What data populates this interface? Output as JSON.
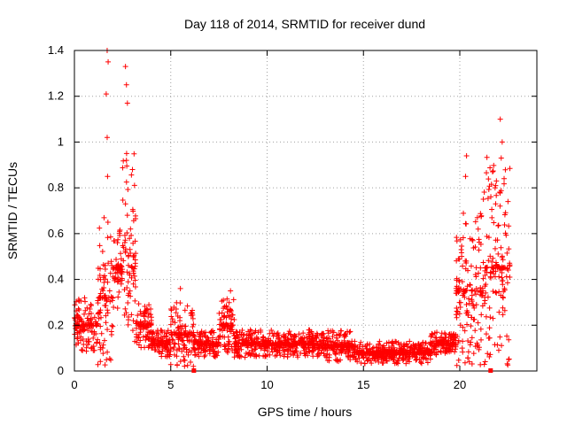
{
  "chart_data": {
    "type": "scatter",
    "title": "Day 118 of 2014, SRMTID for receiver dund",
    "xlabel": "GPS time / hours",
    "ylabel": "SRMTID / TECUs",
    "xlim": [
      0,
      24
    ],
    "ylim": [
      0,
      1.4
    ],
    "xticks": [
      "0",
      "5",
      "10",
      "15",
      "20"
    ],
    "yticks": [
      "0",
      "0.2",
      "0.4",
      "0.6",
      "0.8",
      "1",
      "1.2",
      "1.4"
    ],
    "grid": true,
    "marker": "+",
    "series_color": "#ff0000",
    "segments": [
      {
        "x": [
          0.0,
          1.2
        ],
        "base": 0.2,
        "spread": 0.12
      },
      {
        "x": [
          1.2,
          2.0
        ],
        "base": 0.32,
        "spread": 0.35
      },
      {
        "x": [
          2.0,
          2.5
        ],
        "base": 0.45,
        "spread": 0.18
      },
      {
        "x": [
          2.5,
          3.2
        ],
        "base": 0.5,
        "spread": 0.45
      },
      {
        "x": [
          3.2,
          4.0
        ],
        "base": 0.2,
        "spread": 0.1
      },
      {
        "x": [
          4.0,
          5.0
        ],
        "base": 0.12,
        "spread": 0.06
      },
      {
        "x": [
          5.0,
          6.2
        ],
        "base": 0.16,
        "spread": 0.14
      },
      {
        "x": [
          6.2,
          7.5
        ],
        "base": 0.12,
        "spread": 0.06
      },
      {
        "x": [
          7.5,
          8.3
        ],
        "base": 0.2,
        "spread": 0.12
      },
      {
        "x": [
          8.3,
          13.0
        ],
        "base": 0.12,
        "spread": 0.06
      },
      {
        "x": [
          13.0,
          14.5
        ],
        "base": 0.11,
        "spread": 0.07
      },
      {
        "x": [
          14.5,
          18.5
        ],
        "base": 0.08,
        "spread": 0.05
      },
      {
        "x": [
          18.5,
          19.8
        ],
        "base": 0.12,
        "spread": 0.05
      },
      {
        "x": [
          19.8,
          21.2
        ],
        "base": 0.35,
        "spread": 0.35
      },
      {
        "x": [
          21.2,
          22.6
        ],
        "base": 0.45,
        "spread": 0.5
      }
    ],
    "peaks": [
      {
        "x": 1.7,
        "y": 1.4
      },
      {
        "x": 1.75,
        "y": 1.35
      },
      {
        "x": 1.65,
        "y": 1.21
      },
      {
        "x": 1.7,
        "y": 1.02
      },
      {
        "x": 1.72,
        "y": 0.85
      },
      {
        "x": 2.65,
        "y": 1.33
      },
      {
        "x": 2.7,
        "y": 1.25
      },
      {
        "x": 2.75,
        "y": 1.17
      },
      {
        "x": 2.7,
        "y": 0.92
      },
      {
        "x": 2.65,
        "y": 0.73
      },
      {
        "x": 20.35,
        "y": 0.94
      },
      {
        "x": 20.3,
        "y": 0.85
      },
      {
        "x": 21.7,
        "y": 0.87
      },
      {
        "x": 21.9,
        "y": 0.83
      },
      {
        "x": 22.1,
        "y": 1.1
      },
      {
        "x": 22.2,
        "y": 1.0
      },
      {
        "x": 22.15,
        "y": 0.93
      },
      {
        "x": 22.3,
        "y": 0.84
      },
      {
        "x": 22.5,
        "y": 0.74
      },
      {
        "x": 5.5,
        "y": 0.36
      },
      {
        "x": 8.1,
        "y": 0.35
      }
    ],
    "gaps": [
      6.2,
      21.6
    ]
  }
}
